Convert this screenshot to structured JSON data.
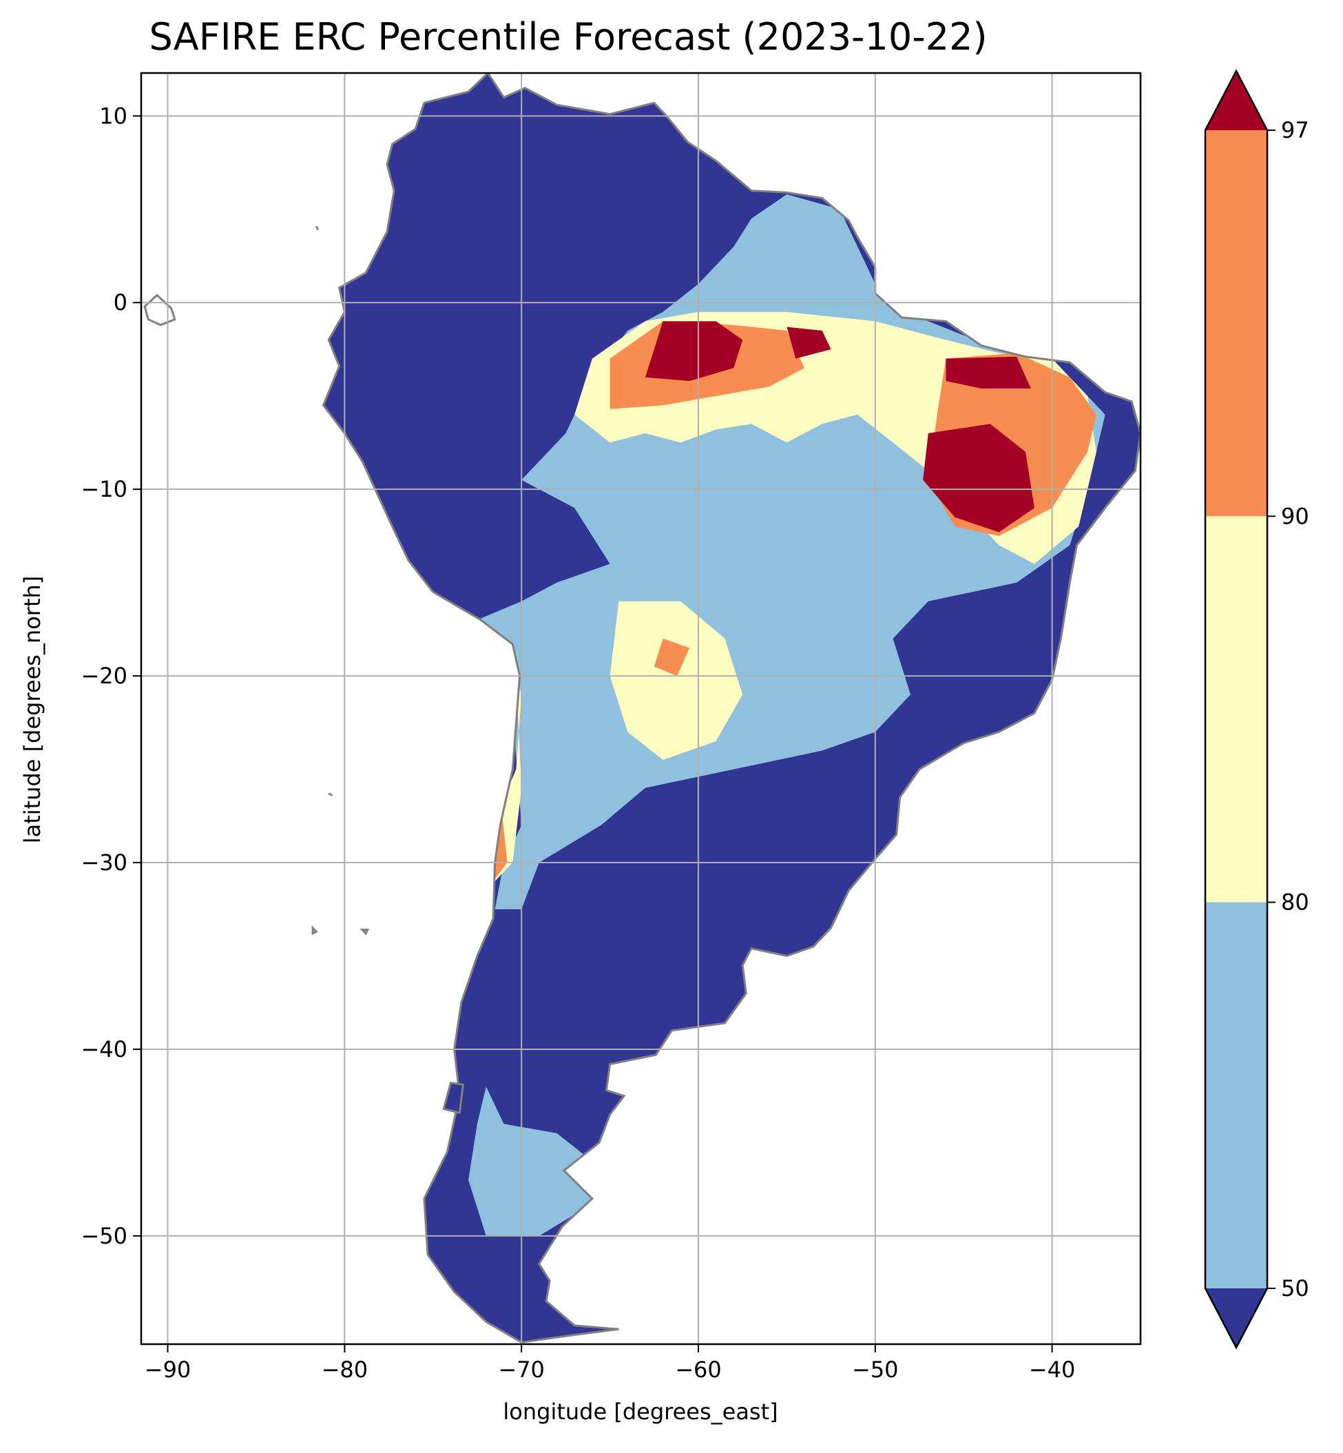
{
  "chart_data": {
    "type": "heatmap",
    "title": "SAFIRE ERC Percentile Forecast (2023-10-22)",
    "xlabel": "longitude [degrees_east]",
    "ylabel": "latitude [degrees_north]",
    "xlim": [
      -91.5,
      -35
    ],
    "ylim": [
      -55.8,
      12.3
    ],
    "x_ticks": [
      -90,
      -80,
      -70,
      -60,
      -50,
      -40
    ],
    "x_tick_labels": [
      "−90",
      "−80",
      "−70",
      "−60",
      "−50",
      "−40"
    ],
    "y_ticks": [
      10,
      0,
      -10,
      -20,
      -30,
      -40,
      -50
    ],
    "y_tick_labels": [
      "10",
      "0",
      "−10",
      "−20",
      "−30",
      "−40",
      "−50"
    ],
    "grid": true,
    "colorbar": {
      "position": "right",
      "extend": "both",
      "boundaries": [
        50,
        80,
        90,
        97
      ],
      "tick_labels": [
        "50",
        "80",
        "90",
        "97"
      ],
      "colors": [
        "#313695",
        "#8fc1de",
        "#fefcc0",
        "#f88d51",
        "#a50026"
      ]
    },
    "colors": {
      "ocean": "#ffffff",
      "border": "#808080",
      "grid": "#b0b0b0",
      "below_50": "#313695",
      "p50_80": "#8fc1de",
      "p80_90": "#fefcc0",
      "p90_97": "#f88d51",
      "above_97": "#a50026"
    },
    "regions": [
      {
        "category": "p50_80",
        "polygon": [
          [
            -72.5,
            -17
          ],
          [
            -70.5,
            -22
          ],
          [
            -70,
            -28
          ],
          [
            -71,
            -30
          ],
          [
            -71.5,
            -32.5
          ],
          [
            -70,
            -32.5
          ],
          [
            -69,
            -30
          ],
          [
            -65.5,
            -28
          ],
          [
            -63,
            -26
          ],
          [
            -58,
            -25
          ],
          [
            -53,
            -24
          ],
          [
            -50,
            -23
          ],
          [
            -48,
            -21
          ],
          [
            -49,
            -18
          ],
          [
            -47,
            -16
          ],
          [
            -42,
            -15
          ],
          [
            -39,
            -13
          ],
          [
            -38,
            -10
          ],
          [
            -37,
            -6
          ],
          [
            -39,
            -4
          ],
          [
            -43,
            -2.5
          ],
          [
            -47,
            -1
          ],
          [
            -49.5,
            0
          ],
          [
            -51,
            3
          ],
          [
            -52,
            5
          ],
          [
            -55,
            5.8
          ],
          [
            -57,
            4.5
          ],
          [
            -58,
            3
          ],
          [
            -60,
            1
          ],
          [
            -62,
            -0.5
          ],
          [
            -64,
            -1.5
          ],
          [
            -66,
            -4
          ],
          [
            -67.5,
            -7
          ],
          [
            -70,
            -9.5
          ],
          [
            -67,
            -11
          ],
          [
            -65,
            -14
          ],
          [
            -68,
            -15
          ],
          [
            -70,
            -16
          ]
        ]
      },
      {
        "category": "p50_80",
        "polygon": [
          [
            -72,
            -42
          ],
          [
            -71,
            -44
          ],
          [
            -68,
            -44.5
          ],
          [
            -66,
            -46
          ],
          [
            -65.5,
            -48
          ],
          [
            -69,
            -50
          ],
          [
            -72,
            -50
          ],
          [
            -73,
            -47
          ],
          [
            -72.5,
            -44
          ]
        ]
      },
      {
        "category": "p80_90",
        "polygon": [
          [
            -66,
            -3
          ],
          [
            -63,
            -1
          ],
          [
            -60,
            -0.5
          ],
          [
            -55,
            -0.5
          ],
          [
            -50,
            -1
          ],
          [
            -46,
            -2
          ],
          [
            -43,
            -2.7
          ],
          [
            -40,
            -3
          ],
          [
            -38,
            -5
          ],
          [
            -37.5,
            -8
          ],
          [
            -38.5,
            -12
          ],
          [
            -41,
            -14
          ],
          [
            -43,
            -13
          ],
          [
            -45,
            -11
          ],
          [
            -47,
            -9
          ],
          [
            -49,
            -7.5
          ],
          [
            -51,
            -6
          ],
          [
            -53,
            -6.5
          ],
          [
            -55,
            -7.5
          ],
          [
            -57,
            -6.5
          ],
          [
            -59,
            -6.8
          ],
          [
            -61,
            -7.5
          ],
          [
            -63,
            -7
          ],
          [
            -65,
            -7.5
          ],
          [
            -67,
            -6
          ]
        ]
      },
      {
        "category": "p80_90",
        "polygon": [
          [
            -64.5,
            -16
          ],
          [
            -61,
            -16
          ],
          [
            -58.5,
            -18
          ],
          [
            -57.5,
            -21
          ],
          [
            -59,
            -23.5
          ],
          [
            -62,
            -24.5
          ],
          [
            -64,
            -23
          ],
          [
            -65,
            -20
          ]
        ]
      },
      {
        "category": "p80_90",
        "polygon": [
          [
            -71,
            -18
          ],
          [
            -70,
            -21
          ],
          [
            -70.3,
            -25
          ],
          [
            -71.2,
            -27
          ],
          [
            -71.5,
            -31
          ],
          [
            -70.5,
            -30
          ],
          [
            -70,
            -26
          ],
          [
            -70.2,
            -22
          ]
        ]
      },
      {
        "category": "p90_97",
        "polygon": [
          [
            -65,
            -3
          ],
          [
            -62,
            -1
          ],
          [
            -58,
            -1.2
          ],
          [
            -55,
            -1.5
          ],
          [
            -54,
            -3.5
          ],
          [
            -56,
            -4.5
          ],
          [
            -59,
            -5
          ],
          [
            -62,
            -5.5
          ],
          [
            -65,
            -5.7
          ]
        ]
      },
      {
        "category": "p90_97",
        "polygon": [
          [
            -46,
            -3
          ],
          [
            -42,
            -2.7
          ],
          [
            -39,
            -4
          ],
          [
            -37.5,
            -6
          ],
          [
            -38,
            -8
          ],
          [
            -40,
            -11
          ],
          [
            -43,
            -12.5
          ],
          [
            -45.5,
            -12
          ],
          [
            -47,
            -9.5
          ],
          [
            -46.5,
            -6
          ]
        ]
      },
      {
        "category": "p90_97",
        "polygon": [
          [
            -71.2,
            -26.5
          ],
          [
            -70.8,
            -30
          ],
          [
            -71.6,
            -31
          ],
          [
            -71.8,
            -28
          ]
        ]
      },
      {
        "category": "p90_97",
        "polygon": [
          [
            -62,
            -18
          ],
          [
            -60.5,
            -18.5
          ],
          [
            -61.2,
            -20
          ],
          [
            -62.5,
            -19.5
          ]
        ]
      },
      {
        "category": "above_97",
        "polygon": [
          [
            -62,
            -1
          ],
          [
            -59,
            -1
          ],
          [
            -57.5,
            -2
          ],
          [
            -58,
            -3.5
          ],
          [
            -60.5,
            -4.2
          ],
          [
            -63,
            -4
          ]
        ]
      },
      {
        "category": "above_97",
        "polygon": [
          [
            -55,
            -1.3
          ],
          [
            -53,
            -1.5
          ],
          [
            -52.5,
            -2.5
          ],
          [
            -54.5,
            -3
          ]
        ]
      },
      {
        "category": "above_97",
        "polygon": [
          [
            -47,
            -7
          ],
          [
            -43.5,
            -6.5
          ],
          [
            -41.5,
            -8
          ],
          [
            -41,
            -11
          ],
          [
            -43,
            -12.3
          ],
          [
            -45.5,
            -11.5
          ],
          [
            -47.3,
            -9.5
          ]
        ]
      },
      {
        "category": "above_97",
        "polygon": [
          [
            -46,
            -3
          ],
          [
            -42,
            -2.9
          ],
          [
            -41.2,
            -4.6
          ],
          [
            -44,
            -4.6
          ],
          [
            -46,
            -4.2
          ]
        ]
      }
    ],
    "land_outline": [
      [
        -77.3,
        8.5
      ],
      [
        -76,
        9.3
      ],
      [
        -75.5,
        10.7
      ],
      [
        -73,
        11.3
      ],
      [
        -71.9,
        12.3
      ],
      [
        -71,
        11
      ],
      [
        -69.8,
        11.5
      ],
      [
        -68,
        10.6
      ],
      [
        -65,
        10.1
      ],
      [
        -62.5,
        10.7
      ],
      [
        -61.8,
        10
      ],
      [
        -60.6,
        8.6
      ],
      [
        -59,
        7.6
      ],
      [
        -58,
        6.8
      ],
      [
        -57,
        6
      ],
      [
        -55,
        5.9
      ],
      [
        -53,
        5.6
      ],
      [
        -51.5,
        4.4
      ],
      [
        -51,
        3.5
      ],
      [
        -50,
        1.9
      ],
      [
        -50,
        0.5
      ],
      [
        -48.5,
        -0.8
      ],
      [
        -46,
        -1
      ],
      [
        -44,
        -2.3
      ],
      [
        -41.5,
        -2.9
      ],
      [
        -39,
        -3.2
      ],
      [
        -37,
        -4.8
      ],
      [
        -35.5,
        -5.3
      ],
      [
        -35,
        -7
      ],
      [
        -35.3,
        -9
      ],
      [
        -37,
        -11
      ],
      [
        -38.6,
        -13
      ],
      [
        -39,
        -15
      ],
      [
        -39.5,
        -18
      ],
      [
        -40,
        -20.2
      ],
      [
        -41,
        -22
      ],
      [
        -43,
        -23
      ],
      [
        -45,
        -23.6
      ],
      [
        -47.5,
        -25
      ],
      [
        -48.6,
        -26.5
      ],
      [
        -48.8,
        -28.5
      ],
      [
        -50,
        -29.8
      ],
      [
        -51.5,
        -31.5
      ],
      [
        -52.5,
        -33.5
      ],
      [
        -53.5,
        -34.5
      ],
      [
        -55,
        -35
      ],
      [
        -57,
        -34.6
      ],
      [
        -57.5,
        -35.5
      ],
      [
        -57.3,
        -37
      ],
      [
        -58.5,
        -38.6
      ],
      [
        -61.5,
        -39
      ],
      [
        -62.4,
        -40.3
      ],
      [
        -65,
        -40.8
      ],
      [
        -65.2,
        -42.2
      ],
      [
        -64.2,
        -42.5
      ],
      [
        -65,
        -43.5
      ],
      [
        -65.6,
        -45
      ],
      [
        -67.6,
        -46.5
      ],
      [
        -66,
        -48
      ],
      [
        -67.7,
        -49.5
      ],
      [
        -69,
        -51.5
      ],
      [
        -68.4,
        -52.4
      ],
      [
        -68.6,
        -53.5
      ],
      [
        -67,
        -54.8
      ],
      [
        -64.5,
        -55
      ],
      [
        -67,
        -55.3
      ],
      [
        -70,
        -55.7
      ],
      [
        -72,
        -54.6
      ],
      [
        -73.8,
        -53
      ],
      [
        -75.3,
        -51
      ],
      [
        -75.5,
        -48
      ],
      [
        -74.2,
        -45.5
      ],
      [
        -73.5,
        -42.5
      ],
      [
        -73.8,
        -40
      ],
      [
        -73.4,
        -37.5
      ],
      [
        -72.5,
        -35
      ],
      [
        -71.6,
        -33
      ],
      [
        -71.5,
        -30
      ],
      [
        -71.2,
        -28
      ],
      [
        -70.5,
        -25
      ],
      [
        -70.1,
        -20
      ],
      [
        -70.5,
        -18.3
      ],
      [
        -72.3,
        -17
      ],
      [
        -75,
        -15.5
      ],
      [
        -76.4,
        -13.8
      ],
      [
        -77.3,
        -12
      ],
      [
        -79,
        -8.5
      ],
      [
        -80,
        -7
      ],
      [
        -81.2,
        -5.5
      ],
      [
        -80.3,
        -3.4
      ],
      [
        -80.9,
        -2
      ],
      [
        -80,
        -0.5
      ],
      [
        -80.3,
        0.8
      ],
      [
        -78.8,
        1.6
      ],
      [
        -77.6,
        3.8
      ],
      [
        -77.2,
        6
      ],
      [
        -77.6,
        7.4
      ]
    ],
    "islands": [
      [
        [
          -91.3,
          -0.2
        ],
        [
          -90.6,
          0.4
        ],
        [
          -89.8,
          -0.3
        ],
        [
          -89.6,
          -0.9
        ],
        [
          -90.4,
          -1.2
        ],
        [
          -91.1,
          -0.9
        ]
      ],
      [
        [
          -81.8,
          -33.5
        ],
        [
          -81.6,
          -33.7
        ],
        [
          -81.8,
          -33.8
        ]
      ],
      [
        [
          -79.0,
          -33.6
        ],
        [
          -78.7,
          -33.6
        ],
        [
          -78.8,
          -33.8
        ]
      ],
      [
        [
          -81.6,
          4.1
        ],
        [
          -81.5,
          3.9
        ]
      ],
      [
        [
          -80.9,
          -26.3
        ],
        [
          -80.7,
          -26.4
        ]
      ],
      [
        [
          -74.0,
          -41.8
        ],
        [
          -73.3,
          -41.9
        ],
        [
          -73.5,
          -43.4
        ],
        [
          -74.4,
          -43.2
        ]
      ]
    ]
  }
}
